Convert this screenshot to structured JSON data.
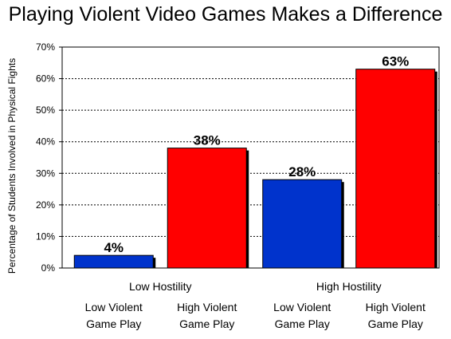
{
  "chart_data": {
    "type": "bar",
    "title": "Playing Violent Video Games Makes a Difference",
    "ylabel": "Percentage of Students Involved in Physical Fights",
    "ylim": [
      0,
      70
    ],
    "yticks": [
      0,
      10,
      20,
      30,
      40,
      50,
      60,
      70
    ],
    "ytick_labels": [
      "0%",
      "10%",
      "20%",
      "30%",
      "40%",
      "50%",
      "60%",
      "70%"
    ],
    "grid": true,
    "groups": [
      {
        "label": "Low Hostility",
        "bars": [
          {
            "label_line1": "Low Violent",
            "label_line2": "Game Play",
            "value": 4,
            "data_label": "4%",
            "color": "#0033CC"
          },
          {
            "label_line1": "High Violent",
            "label_line2": "Game Play",
            "value": 38,
            "data_label": "38%",
            "color": "#FF0000"
          }
        ]
      },
      {
        "label": "High Hostility",
        "bars": [
          {
            "label_line1": "Low Violent",
            "label_line2": "Game Play",
            "value": 28,
            "data_label": "28%",
            "color": "#0033CC"
          },
          {
            "label_line1": "High Violent",
            "label_line2": "Game Play",
            "value": 63,
            "data_label": "63%",
            "color": "#FF0000"
          }
        ]
      }
    ]
  }
}
